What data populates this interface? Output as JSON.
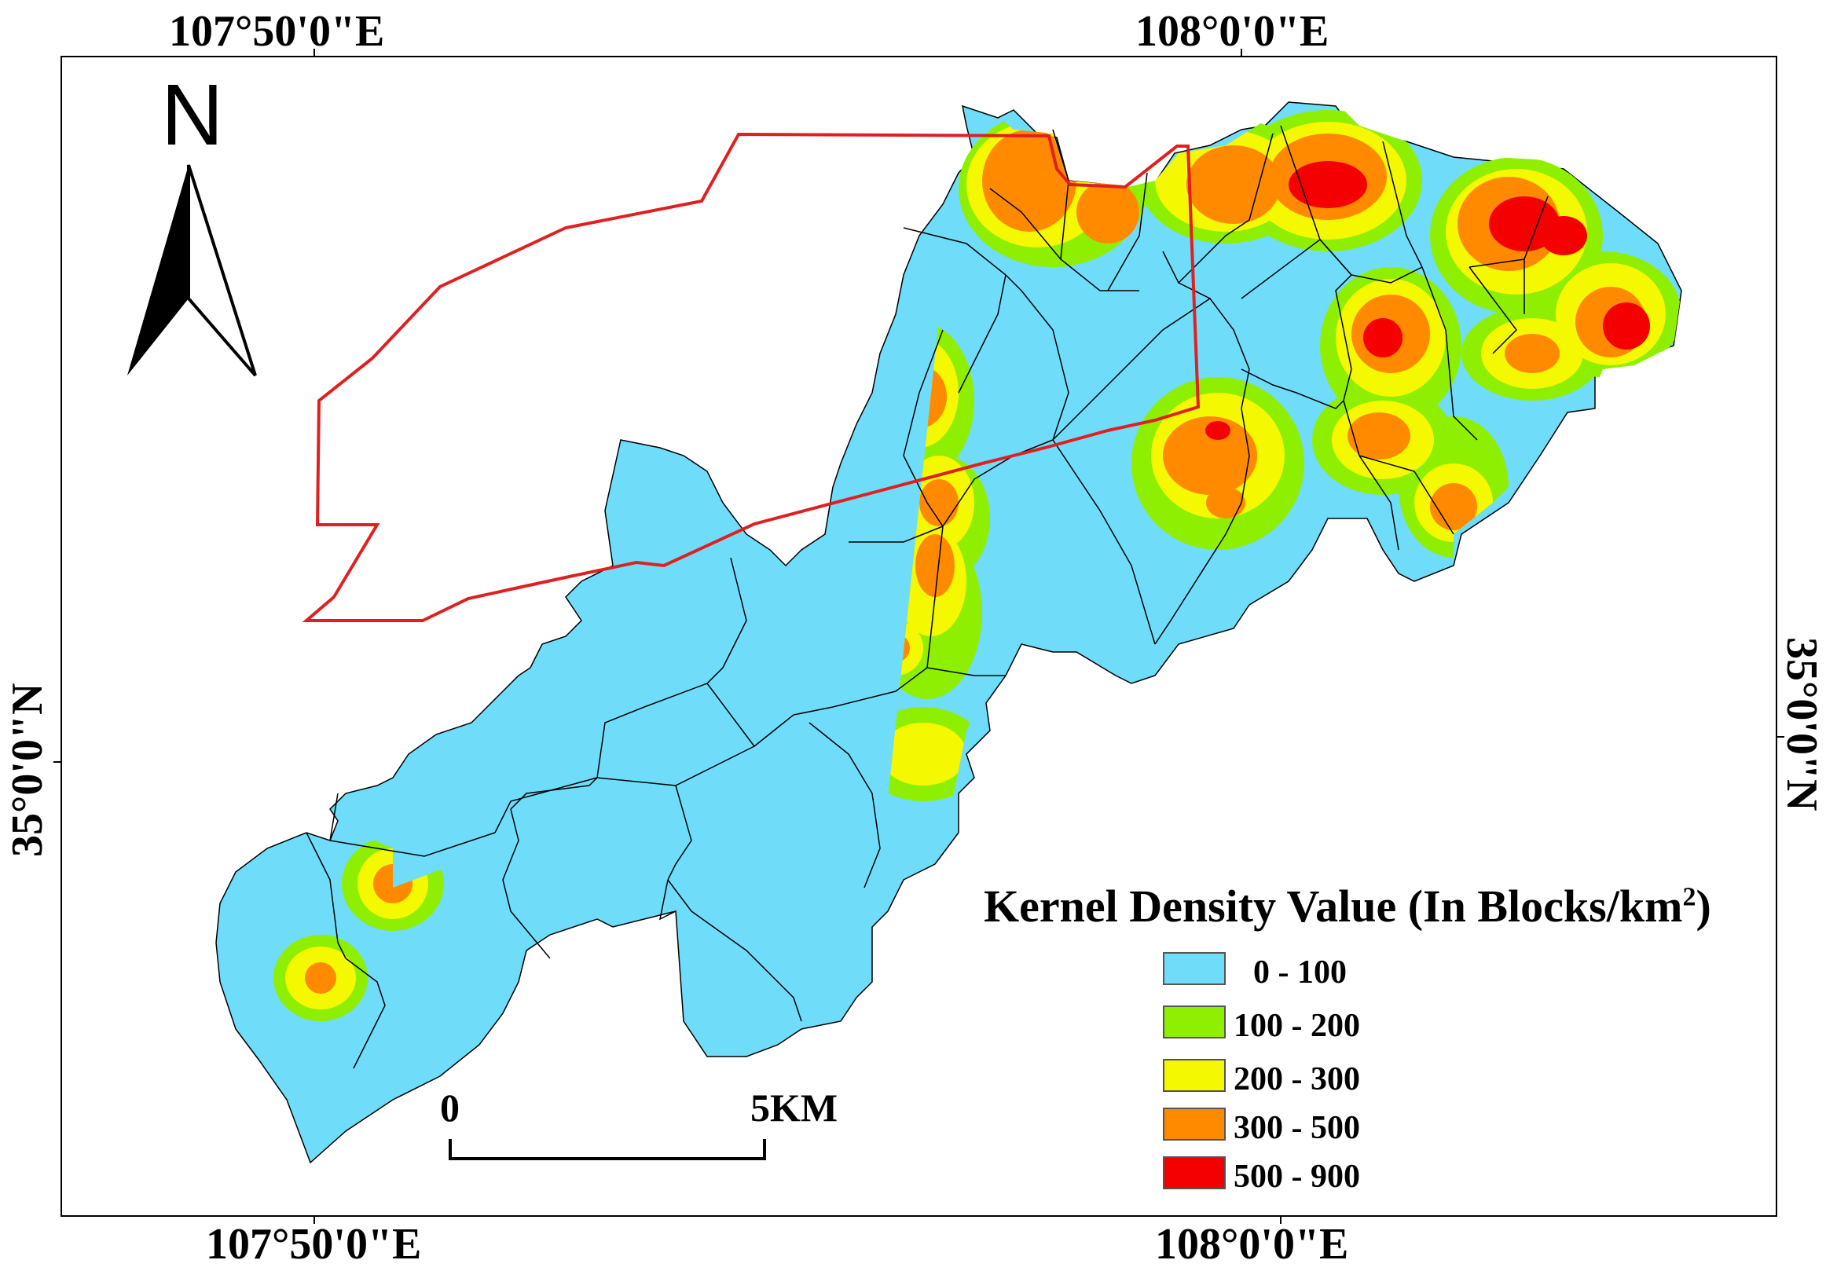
{
  "coordinates": {
    "top_left": "107°50'0\"E",
    "top_right": "108°0'0\"E",
    "bottom_left": "107°50'0\"E",
    "bottom_right": "108°0'0\"E",
    "left": "35°0'0\"N",
    "right": "35°0'0\"N"
  },
  "north_arrow": {
    "label": "N"
  },
  "legend": {
    "title_main": "Kernel Density Value (In Blocks/km",
    "title_sup": "2",
    "title_end": ")",
    "items": [
      {
        "label": "0 - 100",
        "color": "#6fdcf9"
      },
      {
        "label": "100 - 200",
        "color": "#8ef000"
      },
      {
        "label": "200 - 300",
        "color": "#f4f800"
      },
      {
        "label": "300 - 500",
        "color": "#ff8a00"
      },
      {
        "label": "500 - 900",
        "color": "#f50000"
      }
    ]
  },
  "scale_bar": {
    "start": "0",
    "end": "5KM"
  },
  "colors": {
    "boundary": "#e02020",
    "base": "#6fdcf9"
  }
}
